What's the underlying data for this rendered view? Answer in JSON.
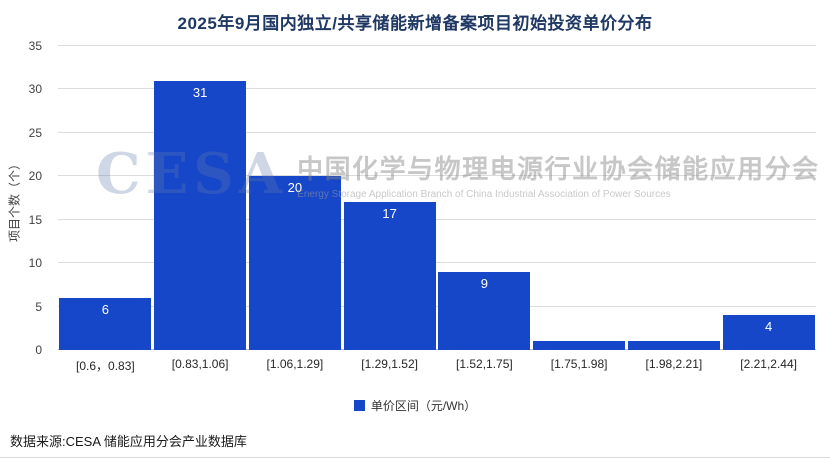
{
  "title": "2025年9月国内独立/共享储能新增备案项目初始投资单价分布",
  "watermark": {
    "logo": "CESA",
    "line1": "中国化学与物理电源行业协会储能应用分会",
    "line2": "Energy Storage Application Branch of China Industrial Association of Power Sources"
  },
  "chart_data": {
    "type": "bar",
    "title": "2025年9月国内独立/共享储能新增备案项目初始投资单价分布",
    "categories": [
      "[0.6，0.83]",
      "[0.83,1.06]",
      "[1.06,1.29]",
      "[1.29,1.52]",
      "[1.52,1.75]",
      "[1.75,1.98]",
      "[1.98,2.21]",
      "[2.21,2.44]"
    ],
    "values": [
      6,
      31,
      20,
      17,
      9,
      1,
      1,
      4
    ],
    "data_labels": [
      "6",
      "31",
      "20",
      "17",
      "9",
      "",
      "",
      "4"
    ],
    "xlabel": "单价区间（元/Wh）",
    "ylabel": "项目个数（个）",
    "ylim": [
      0,
      35
    ],
    "yticks": [
      0,
      5,
      10,
      15,
      20,
      25,
      30,
      35
    ],
    "grid": true,
    "legend": [
      "单价区间（元/Wh）"
    ],
    "legend_position": "bottom",
    "bar_color": "#1747c9"
  },
  "footer": {
    "source": "数据来源:CESA 储能应用分会产业数据库"
  }
}
